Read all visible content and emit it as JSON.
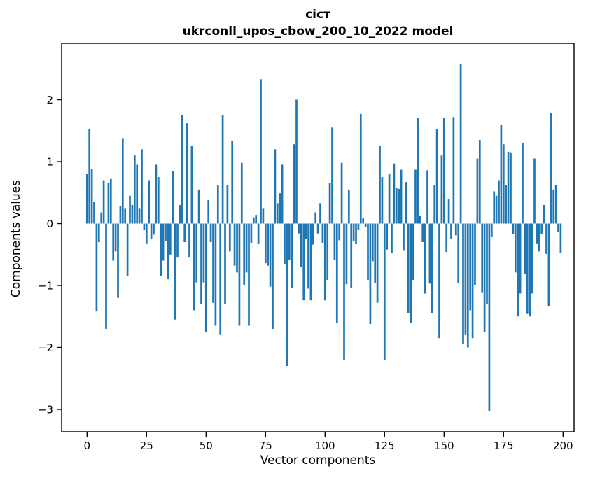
{
  "figure": {
    "title_line1": "сіст",
    "title_line2": "ukrconll_upos_cbow_200_10_2022 model",
    "xlabel": "Vector components",
    "ylabel": "Components values",
    "bar_color": "#1f77b4",
    "x_ticks": [
      {
        "label": "0",
        "value": 0
      },
      {
        "label": "25",
        "value": 25
      },
      {
        "label": "50",
        "value": 50
      },
      {
        "label": "75",
        "value": 75
      },
      {
        "label": "100",
        "value": 100
      },
      {
        "label": "125",
        "value": 125
      },
      {
        "label": "150",
        "value": 150
      },
      {
        "label": "175",
        "value": 175
      },
      {
        "label": "200",
        "value": 200
      }
    ],
    "y_ticks": [
      {
        "label": "2",
        "value": 2
      },
      {
        "label": "1",
        "value": 1
      },
      {
        "label": "0",
        "value": 0
      },
      {
        "label": "−1",
        "value": -1
      },
      {
        "label": "−2",
        "value": -2
      },
      {
        "label": "−3",
        "value": -3
      }
    ]
  },
  "chart_data": {
    "type": "bar",
    "title": "сіст\nukrconll_upos_cbow_200_10_2022 model",
    "xlabel": "Vector components",
    "ylabel": "Components values",
    "xlim": [
      -10.7,
      204.6
    ],
    "ylim": [
      -3.36,
      2.91
    ],
    "grid": false,
    "legend": false,
    "bar_color": "#1f77b4",
    "x_description": "vector component index 0..199",
    "values": [
      0.8,
      1.52,
      0.88,
      0.35,
      -1.42,
      -0.3,
      0.18,
      0.7,
      -1.7,
      0.65,
      0.72,
      -0.6,
      -0.45,
      -1.2,
      0.28,
      1.38,
      0.25,
      -0.85,
      0.45,
      0.3,
      1.1,
      0.95,
      0.25,
      1.2,
      -0.1,
      -0.32,
      0.7,
      -0.25,
      -0.18,
      0.95,
      0.75,
      -0.85,
      -0.6,
      -0.28,
      -0.9,
      -0.5,
      0.85,
      -1.55,
      -0.55,
      0.3,
      1.75,
      -0.3,
      1.62,
      -0.55,
      1.25,
      -1.4,
      -0.95,
      0.55,
      -1.3,
      -0.95,
      -1.75,
      0.38,
      -0.3,
      -1.28,
      -1.65,
      0.62,
      -1.8,
      1.75,
      -1.3,
      0.62,
      -0.45,
      1.34,
      -0.68,
      -0.79,
      -1.65,
      0.98,
      -1.0,
      -0.79,
      -1.65,
      -0.31,
      0.1,
      0.14,
      -0.33,
      2.33,
      0.25,
      -0.64,
      -0.68,
      -1.02,
      -1.7,
      1.2,
      0.33,
      0.49,
      0.95,
      -0.66,
      -2.3,
      -0.59,
      -1.04,
      1.28,
      2.0,
      -0.16,
      -0.7,
      -1.24,
      -0.25,
      -1.05,
      -1.24,
      -0.34,
      0.18,
      -0.16,
      0.33,
      -0.31,
      -1.24,
      -0.91,
      0.66,
      1.55,
      -0.59,
      -1.6,
      -0.27,
      0.98,
      -2.2,
      -0.98,
      0.55,
      -1.04,
      -0.29,
      -0.33,
      -0.1,
      1.77,
      0.09,
      -0.05,
      -0.91,
      -1.62,
      -0.61,
      -0.96,
      -1.28,
      1.25,
      0.75,
      -2.2,
      -0.42,
      0.8,
      -0.48,
      0.97,
      0.58,
      0.56,
      0.87,
      -0.44,
      0.67,
      -1.45,
      -1.6,
      -0.91,
      0.87,
      1.7,
      0.12,
      -0.3,
      -1.13,
      0.86,
      -0.97,
      -1.45,
      0.62,
      1.52,
      -1.85,
      1.1,
      1.7,
      -0.46,
      0.4,
      -0.25,
      1.72,
      -0.19,
      -0.96,
      2.57,
      -1.95,
      -1.8,
      -2.0,
      -1.4,
      -1.85,
      -1.0,
      1.05,
      1.35,
      -1.12,
      -1.75,
      -1.3,
      -3.03,
      -0.22,
      0.52,
      0.45,
      0.7,
      1.6,
      1.28,
      0.62,
      1.16,
      1.15,
      -0.17,
      -0.79,
      -1.5,
      -1.13,
      1.3,
      -0.81,
      -1.46,
      -1.5,
      -1.13,
      1.05,
      -0.32,
      -0.45,
      -0.17,
      0.3,
      -0.49,
      -1.34,
      1.78,
      0.55,
      0.62,
      -0.14,
      -0.47
    ]
  }
}
